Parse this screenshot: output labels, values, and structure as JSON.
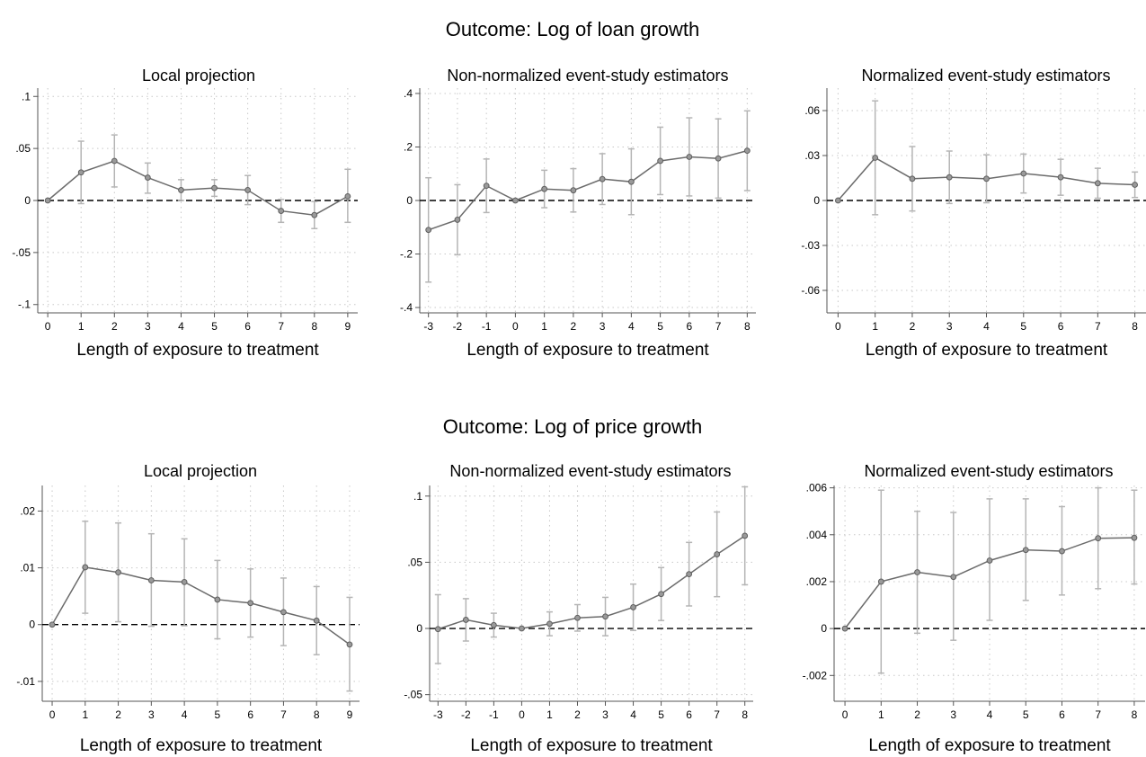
{
  "figure": {
    "row_titles": [
      "Outcome: Log of loan growth",
      "Outcome: Log of price growth"
    ]
  },
  "chart_data": [
    {
      "type": "line",
      "row": 0,
      "title": "Local projection",
      "xlabel": "Length of exposure to treatment",
      "ylabel": "",
      "x": [
        0,
        1,
        2,
        3,
        4,
        5,
        6,
        7,
        8,
        9
      ],
      "xticks": [
        0,
        1,
        2,
        3,
        4,
        5,
        6,
        7,
        8,
        9
      ],
      "xlim": [
        -0.3,
        9.3
      ],
      "yticks": [
        -0.1,
        -0.05,
        0,
        0.05,
        0.1
      ],
      "yticklabels": [
        "-.1",
        "-.05",
        "0",
        ".05",
        ".1"
      ],
      "ylim": [
        -0.108,
        0.108
      ],
      "grid": true,
      "series": [
        {
          "values": [
            0,
            0.027,
            0.038,
            0.022,
            0.01,
            0.012,
            0.01,
            -0.01,
            -0.014,
            0.004
          ],
          "ci_lower": [
            0,
            -0.003,
            0.013,
            0.007,
            0.0,
            0.004,
            -0.004,
            -0.021,
            -0.027,
            -0.021
          ],
          "ci_upper": [
            0,
            0.057,
            0.063,
            0.036,
            0.02,
            0.02,
            0.024,
            0.001,
            -0.001,
            0.03
          ]
        }
      ]
    },
    {
      "type": "line",
      "row": 0,
      "title": "Non-normalized event-study estimators",
      "xlabel": "Length of exposure to treatment",
      "ylabel": "",
      "x": [
        -3,
        -2,
        -1,
        0,
        1,
        2,
        3,
        4,
        5,
        6,
        7,
        8
      ],
      "xticks": [
        -3,
        -2,
        -1,
        0,
        1,
        2,
        3,
        4,
        5,
        6,
        7,
        8
      ],
      "xlim": [
        -3.3,
        8.3
      ],
      "yticks": [
        -0.4,
        -0.2,
        0,
        0.2,
        0.4
      ],
      "yticklabels": [
        "-.4",
        "-.2",
        "0",
        ".2",
        ".4"
      ],
      "ylim": [
        -0.42,
        0.42
      ],
      "grid": true,
      "series": [
        {
          "values": [
            -0.11,
            -0.072,
            0.055,
            0,
            0.043,
            0.038,
            0.08,
            0.07,
            0.148,
            0.163,
            0.157,
            0.186
          ],
          "ci_lower": [
            -0.305,
            -0.203,
            -0.045,
            0,
            -0.027,
            -0.043,
            -0.015,
            -0.053,
            0.022,
            0.017,
            0.009,
            0.037
          ],
          "ci_upper": [
            0.085,
            0.059,
            0.155,
            0,
            0.113,
            0.119,
            0.175,
            0.193,
            0.274,
            0.309,
            0.305,
            0.335
          ]
        }
      ]
    },
    {
      "type": "line",
      "row": 0,
      "title": "Normalized event-study estimators",
      "xlabel": "Length of exposure to treatment",
      "ylabel": "",
      "x": [
        0,
        1,
        2,
        3,
        4,
        5,
        6,
        7,
        8
      ],
      "xticks": [
        0,
        1,
        2,
        3,
        4,
        5,
        6,
        7,
        8
      ],
      "xlim": [
        -0.3,
        8.3
      ],
      "yticks": [
        -0.06,
        -0.03,
        0,
        0.03,
        0.06
      ],
      "yticklabels": [
        "-.06",
        "-.03",
        "0",
        ".03",
        ".06"
      ],
      "ylim": [
        -0.075,
        0.075
      ],
      "grid": true,
      "series": [
        {
          "values": [
            0,
            0.0285,
            0.0145,
            0.0155,
            0.0145,
            0.018,
            0.0155,
            0.0115,
            0.0105
          ],
          "ci_lower": [
            0,
            -0.0095,
            -0.007,
            -0.002,
            -0.0015,
            0.005,
            0.0035,
            0.0015,
            0.002
          ],
          "ci_upper": [
            0,
            0.0665,
            0.036,
            0.033,
            0.0305,
            0.031,
            0.0275,
            0.0215,
            0.019
          ]
        }
      ]
    },
    {
      "type": "line",
      "row": 1,
      "title": "Local projection",
      "xlabel": "Length of exposure to treatment",
      "ylabel": "",
      "x": [
        0,
        1,
        2,
        3,
        4,
        5,
        6,
        7,
        8,
        9
      ],
      "xticks": [
        0,
        1,
        2,
        3,
        4,
        5,
        6,
        7,
        8,
        9
      ],
      "xlim": [
        -0.3,
        9.3
      ],
      "yticks": [
        -0.01,
        0,
        0.01,
        0.02
      ],
      "yticklabels": [
        "-.01",
        "0",
        ".01",
        ".02"
      ],
      "ylim": [
        -0.0135,
        0.0245
      ],
      "grid": true,
      "series": [
        {
          "values": [
            0,
            0.0101,
            0.0092,
            0.0078,
            0.0075,
            0.0044,
            0.0038,
            0.0022,
            0.0007,
            -0.0035
          ],
          "ci_lower": [
            0,
            0.002,
            0.0005,
            -0.0003,
            -0.0002,
            -0.0025,
            -0.0022,
            -0.0037,
            -0.0053,
            -0.0117
          ],
          "ci_upper": [
            0,
            0.0182,
            0.0179,
            0.016,
            0.0151,
            0.0113,
            0.0098,
            0.0082,
            0.0067,
            0.0048
          ]
        }
      ]
    },
    {
      "type": "line",
      "row": 1,
      "title": "Non-normalized event-study estimators",
      "xlabel": "Length of exposure to treatment",
      "ylabel": "",
      "x": [
        -3,
        -2,
        -1,
        0,
        1,
        2,
        3,
        4,
        5,
        6,
        7,
        8
      ],
      "xticks": [
        -3,
        -2,
        -1,
        0,
        1,
        2,
        3,
        4,
        5,
        6,
        7,
        8
      ],
      "xlim": [
        -3.3,
        8.3
      ],
      "yticks": [
        -0.05,
        0,
        0.05,
        0.1
      ],
      "yticklabels": [
        "-.05",
        "0",
        ".05",
        ".1"
      ],
      "ylim": [
        -0.055,
        0.108
      ],
      "grid": true,
      "series": [
        {
          "values": [
            -0.0005,
            0.0065,
            0.0025,
            0,
            0.0035,
            0.008,
            0.009,
            0.016,
            0.026,
            0.041,
            0.056,
            0.07
          ],
          "ci_lower": [
            -0.0265,
            -0.0095,
            -0.0065,
            0,
            -0.0055,
            -0.002,
            -0.0055,
            -0.0015,
            0.006,
            0.017,
            0.024,
            0.033
          ],
          "ci_upper": [
            0.0255,
            0.0225,
            0.0115,
            0,
            0.0125,
            0.018,
            0.0235,
            0.0335,
            0.046,
            0.065,
            0.088,
            0.107
          ]
        }
      ]
    },
    {
      "type": "line",
      "row": 1,
      "title": "Normalized event-study estimators",
      "xlabel": "Length of exposure to treatment",
      "ylabel": "",
      "x": [
        0,
        1,
        2,
        3,
        4,
        5,
        6,
        7,
        8
      ],
      "xticks": [
        0,
        1,
        2,
        3,
        4,
        5,
        6,
        7,
        8
      ],
      "xlim": [
        -0.3,
        8.3
      ],
      "yticks": [
        -0.002,
        0,
        0.002,
        0.004,
        0.006
      ],
      "yticklabels": [
        "-.002",
        "0",
        ".002",
        ".004",
        ".006"
      ],
      "ylim": [
        -0.0031,
        0.0061
      ],
      "grid": true,
      "series": [
        {
          "values": [
            0,
            0.002,
            0.0024,
            0.0022,
            0.0029,
            0.00335,
            0.0033,
            0.00385,
            0.00387
          ],
          "ci_lower": [
            0,
            -0.0019,
            -0.0002,
            -0.0005,
            0.00035,
            0.0012,
            0.00143,
            0.0017,
            0.0019
          ],
          "ci_upper": [
            0,
            0.0059,
            0.005,
            0.00495,
            0.00553,
            0.00553,
            0.0052,
            0.006,
            0.0059
          ]
        }
      ]
    }
  ]
}
